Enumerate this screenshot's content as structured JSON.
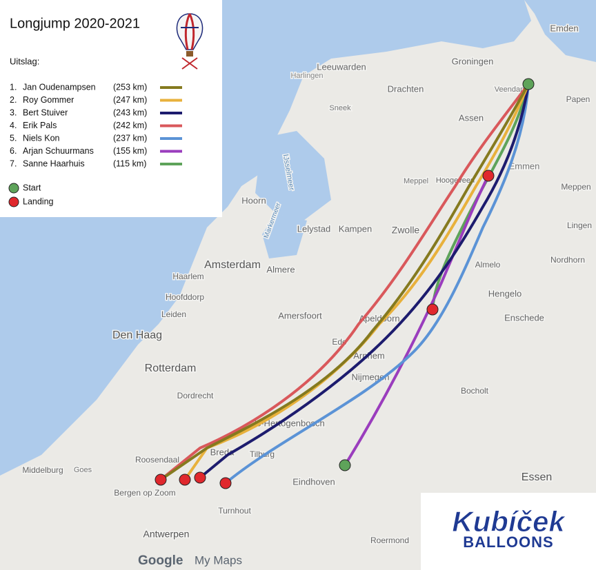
{
  "title": "Longjump 2020-2021",
  "results_label": "Uitslag:",
  "results": [
    {
      "rank": "1.",
      "name": "Jan Oudenampsen",
      "distance": "(253 km)",
      "color": "#857a1f"
    },
    {
      "rank": "2.",
      "name": "Roy Gommer",
      "distance": "(247 km)",
      "color": "#e8b13c"
    },
    {
      "rank": "3.",
      "name": "Bert Stuiver",
      "distance": "(243 km)",
      "color": "#1d1c6e"
    },
    {
      "rank": "4.",
      "name": "Erik Pals",
      "distance": "(242 km)",
      "color": "#d9585b"
    },
    {
      "rank": "5.",
      "name": "Niels Kon",
      "distance": "(237 km)",
      "color": "#5b93d6"
    },
    {
      "rank": "6.",
      "name": "Arjan Schuurmans",
      "distance": "(155 km)",
      "color": "#9a3dbd"
    },
    {
      "rank": "7.",
      "name": "Sanne Haarhuis",
      "distance": "(115 km)",
      "color": "#5ea35a"
    }
  ],
  "legend": [
    {
      "label": "Start",
      "color": "#5ea35a"
    },
    {
      "label": "Landing",
      "color": "#e0282d"
    }
  ],
  "map_labels": [
    "Emden",
    "Leeuwarden",
    "Groningen",
    "Harlingen",
    "Drachten",
    "Veendam",
    "Papen",
    "Sneek",
    "Assen",
    "Emmen",
    "Hoogeveen",
    "Meppel",
    "Meppen",
    "Hoorn",
    "IJsselmeer",
    "Markermeer",
    "Lelystad",
    "Kampen",
    "Zwolle",
    "Lingen",
    "Amsterdam",
    "Almere",
    "Haarlem",
    "Almelo",
    "Nordhorn",
    "Hoofddorp",
    "Hengelo",
    "Leiden",
    "Amersfoort",
    "Apeldoorn",
    "Enschede",
    "Den Haag",
    "Ede",
    "Arnhem",
    "Rotterdam",
    "Nijmegen",
    "Dordrecht",
    "Bocholt",
    "'s-Hertogenbosch",
    "Breda",
    "Tilburg",
    "Roosendaal",
    "Middelburg",
    "Goes",
    "Eindhoven",
    "Bergen op Zoom",
    "Turnhout",
    "Essen",
    "Antwerpen",
    "Roermond"
  ],
  "footer": {
    "brand": "Google",
    "product": "My Maps"
  },
  "logo": {
    "name": "Kubíček",
    "tagline": "BALLOONS"
  }
}
